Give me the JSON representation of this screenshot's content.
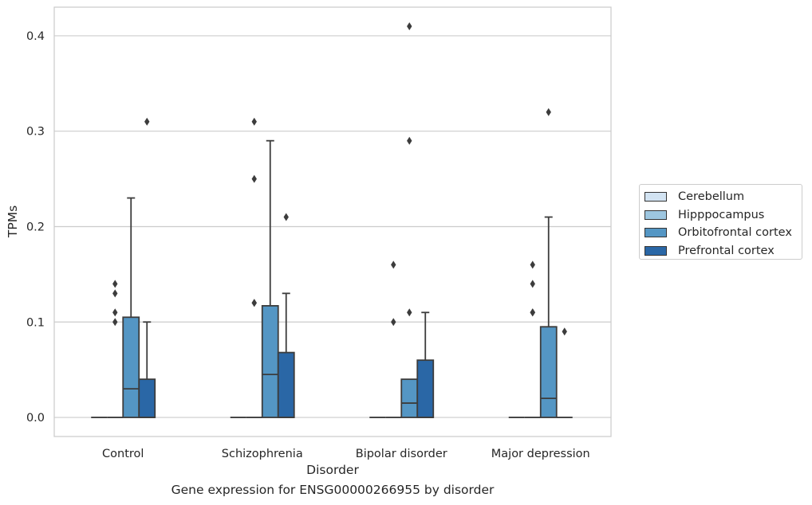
{
  "caption": "Gene expression for ENSG00000266955 by disorder",
  "chart_data": {
    "type": "box",
    "xlabel": "Disorder",
    "ylabel": "TPMs",
    "ylim": [
      -0.02,
      0.43
    ],
    "yticks": [
      "0.0",
      "0.1",
      "0.2",
      "0.3",
      "0.4"
    ],
    "grid": "horizontal",
    "legend_position": "right",
    "categories": [
      "Control",
      "Schizophrenia",
      "Bipolar disorder",
      "Major depression"
    ],
    "series": [
      {
        "name": "Cerebellum",
        "color": "#d2e3f2",
        "boxes": [
          {
            "min": 0,
            "q1": 0,
            "median": 0,
            "q3": 0,
            "max": 0,
            "outliers": []
          },
          {
            "min": 0,
            "q1": 0,
            "median": 0,
            "q3": 0,
            "max": 0,
            "outliers": []
          },
          {
            "min": 0,
            "q1": 0,
            "median": 0,
            "q3": 0,
            "max": 0,
            "outliers": []
          },
          {
            "min": 0,
            "q1": 0,
            "median": 0,
            "q3": 0,
            "max": 0,
            "outliers": []
          }
        ]
      },
      {
        "name": "Hipppocampus",
        "color": "#9dc6e0",
        "boxes": [
          {
            "min": 0,
            "q1": 0,
            "median": 0,
            "q3": 0,
            "max": 0,
            "outliers": [
              0.1,
              0.11,
              0.13,
              0.14
            ]
          },
          {
            "min": 0,
            "q1": 0,
            "median": 0,
            "q3": 0,
            "max": 0,
            "outliers": [
              0.12,
              0.12,
              0.25,
              0.31
            ]
          },
          {
            "min": 0,
            "q1": 0,
            "median": 0,
            "q3": 0,
            "max": 0,
            "outliers": [
              0.1,
              0.16
            ]
          },
          {
            "min": 0,
            "q1": 0,
            "median": 0,
            "q3": 0,
            "max": 0,
            "outliers": [
              0.11,
              0.11,
              0.14,
              0.16,
              0.11
            ]
          }
        ]
      },
      {
        "name": "Orbitofrontal cortex",
        "color": "#5496c4",
        "boxes": [
          {
            "min": 0,
            "q1": 0,
            "median": 0.03,
            "q3": 0.105,
            "max": 0.23,
            "outliers": []
          },
          {
            "min": 0,
            "q1": 0,
            "median": 0.045,
            "q3": 0.117,
            "max": 0.29,
            "outliers": []
          },
          {
            "min": 0,
            "q1": 0,
            "median": 0.015,
            "q3": 0.04,
            "max": 0.04,
            "outliers": [
              0.11,
              0.29,
              0.41
            ]
          },
          {
            "min": 0,
            "q1": 0,
            "median": 0.02,
            "q3": 0.095,
            "max": 0.21,
            "outliers": [
              0.32
            ]
          }
        ]
      },
      {
        "name": "Prefrontal cortex",
        "color": "#2a67a6",
        "boxes": [
          {
            "min": 0,
            "q1": 0,
            "median": 0,
            "q3": 0.04,
            "max": 0.1,
            "outliers": [
              0.31
            ]
          },
          {
            "min": 0,
            "q1": 0,
            "median": 0,
            "q3": 0.068,
            "max": 0.13,
            "outliers": [
              0.21
            ]
          },
          {
            "min": 0,
            "q1": 0,
            "median": 0,
            "q3": 0.06,
            "max": 0.11,
            "outliers": []
          },
          {
            "min": 0,
            "q1": 0,
            "median": 0,
            "q3": 0,
            "max": 0,
            "outliers": [
              0.09
            ]
          }
        ]
      }
    ]
  }
}
